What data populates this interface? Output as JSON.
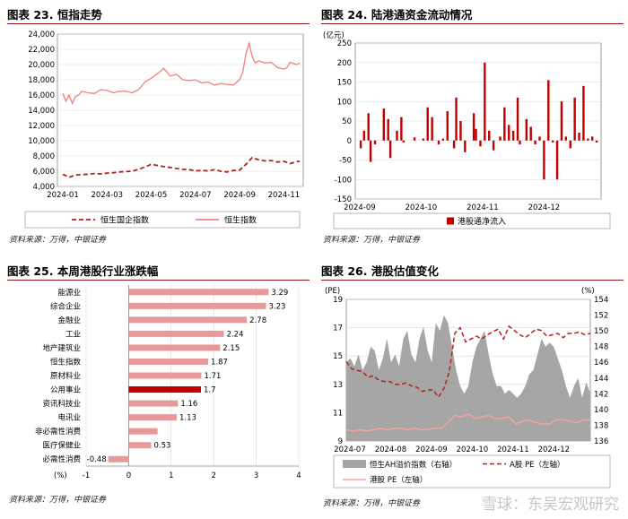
{
  "watermark": "雪球：东吴宏观研究",
  "charts": [
    {
      "panel_title": "图表 23.  恒指走势",
      "source": "资料来源：万得，中银证券",
      "chart_data": {
        "type": "line",
        "title": "",
        "x_ticks": [
          "2024-01",
          "2024-03",
          "2024-05",
          "2024-07",
          "2024-09",
          "2024-11"
        ],
        "ylim": [
          4000,
          24000
        ],
        "y_ticks": [
          "4,000",
          "6,000",
          "8,000",
          "10,000",
          "12,000",
          "14,000",
          "16,000",
          "18,000",
          "20,000",
          "22,000",
          "24,000"
        ],
        "y_tick_values": [
          4000,
          6000,
          8000,
          10000,
          12000,
          14000,
          16000,
          18000,
          20000,
          22000,
          24000
        ],
        "grid": true,
        "legend_position": "bottom",
        "series": [
          {
            "name": "恒生国企指数",
            "color": "#b22222",
            "dash": "5,3",
            "x": [
              0,
              2,
              4,
              6,
              8,
              12,
              16,
              20,
              24,
              28,
              32,
              36,
              40,
              44,
              48,
              52,
              56,
              60,
              64,
              68,
              72,
              76,
              80,
              84,
              88,
              92,
              96,
              100,
              104,
              108,
              112,
              116,
              120,
              124,
              128,
              132,
              136,
              140,
              144,
              148,
              150
            ],
            "y": [
              5600,
              5400,
              5200,
              5350,
              5500,
              5550,
              5600,
              5700,
              5650,
              5750,
              5800,
              5900,
              5950,
              6000,
              6250,
              6550,
              6900,
              6750,
              6600,
              6500,
              6350,
              6250,
              6200,
              6050,
              6100,
              6050,
              6200,
              6000,
              5900,
              6100,
              6150,
              6900,
              7800,
              7500,
              7350,
              7400,
              7200,
              7300,
              7000,
              7250,
              7300
            ]
          },
          {
            "name": "恒生指数",
            "color": "#f08080",
            "dash": "",
            "x": [
              0,
              2,
              4,
              6,
              8,
              10,
              12,
              16,
              20,
              24,
              28,
              32,
              36,
              40,
              44,
              48,
              52,
              56,
              60,
              64,
              68,
              72,
              76,
              80,
              84,
              88,
              92,
              96,
              100,
              104,
              108,
              112,
              114,
              116,
              118,
              120,
              122,
              124,
              128,
              132,
              136,
              140,
              142,
              144,
              148,
              150
            ],
            "y": [
              16200,
              15200,
              16000,
              14900,
              15800,
              16000,
              16500,
              16300,
              16200,
              16700,
              16600,
              16300,
              16500,
              16500,
              16300,
              16700,
              17700,
              18200,
              18800,
              19500,
              18500,
              18700,
              18000,
              17900,
              18000,
              17600,
              17700,
              17300,
              17500,
              17400,
              17300,
              18000,
              19000,
              21500,
              22800,
              21000,
              20200,
              20500,
              20200,
              20300,
              19600,
              19400,
              19600,
              20300,
              20000,
              20200
            ]
          }
        ]
      }
    },
    {
      "panel_title": "图表 24.  陆港通资金流动情况",
      "source": "资料来源：万得，中银证券",
      "chart_data": {
        "type": "bar",
        "title": "",
        "unit_label": "(亿元)",
        "x_ticks": [
          "2024-09",
          "2024-10",
          "2024-11",
          "2024-12"
        ],
        "ylim": [
          -150,
          250
        ],
        "y_ticks": [
          "-150",
          "-100",
          "-50",
          "0",
          "50",
          "100",
          "150",
          "200",
          "250"
        ],
        "y_tick_values": [
          -150,
          -100,
          -50,
          0,
          50,
          100,
          150,
          200,
          250
        ],
        "grid": true,
        "legend_position": "bottom",
        "series": [
          {
            "name": "港股通净流入",
            "color": "#c00000",
            "x": [
              0.5,
              2,
              4,
              5,
              7,
              11,
              13,
              14,
              17,
              19,
              20,
              25,
              29,
              31,
              33,
              36,
              38,
              40,
              43,
              44,
              46,
              48,
              52,
              53,
              55,
              57,
              59,
              61,
              64,
              66,
              68,
              70,
              72,
              73,
              76,
              78,
              80,
              82,
              84,
              86,
              88,
              90,
              92,
              94,
              96,
              98,
              100,
              102,
              104,
              106,
              108
            ],
            "values": [
              -20,
              25,
              70,
              -55,
              -10,
              82,
              55,
              -45,
              25,
              60,
              -5,
              8,
              5,
              85,
              60,
              -10,
              5,
              75,
              -20,
              110,
              50,
              -30,
              70,
              30,
              -15,
              200,
              25,
              -25,
              10,
              85,
              40,
              25,
              110,
              -10,
              55,
              35,
              -10,
              10,
              -100,
              155,
              -5,
              -100,
              100,
              10,
              -20,
              110,
              20,
              140,
              5,
              10,
              -5
            ]
          }
        ]
      }
    },
    {
      "panel_title": "图表 25.  本周港股行业涨跌幅",
      "source": "资料来源：万得，中银证券",
      "chart_data": {
        "type": "bar",
        "orientation": "horizontal",
        "title": "",
        "xlabel": "(%)",
        "xlim": [
          -1,
          4
        ],
        "x_ticks": [
          "-1",
          "0",
          "1",
          "2",
          "3",
          "4"
        ],
        "x_tick_values": [
          -1,
          0,
          1,
          2,
          3,
          4
        ],
        "categories": [
          "能源业",
          "综合企业",
          "金融业",
          "工业",
          "地产建筑业",
          "恒生指数",
          "原材料业",
          "公用事业",
          "资讯科技业",
          "电讯业",
          "非必需性消费",
          "医疗保健业",
          "必需性消费"
        ],
        "values": [
          3.29,
          3.23,
          2.78,
          2.24,
          2.15,
          1.87,
          1.71,
          1.7,
          1.16,
          1.13,
          0.68,
          0.53,
          -0.48
        ],
        "value_labels": [
          "3.29",
          "3.23",
          "2.78",
          "2.24",
          "2.15",
          "1.87",
          "1.71",
          "1.7",
          "1.16",
          "1.13",
          "",
          "0.53",
          "-0.48"
        ],
        "colors": [
          "#e8999a",
          "#e8999a",
          "#e8999a",
          "#e8999a",
          "#e8999a",
          "#e8999a",
          "#e8999a",
          "#c00000",
          "#e8999a",
          "#e8999a",
          "#e8999a",
          "#e8999a",
          "#e8999a"
        ]
      }
    },
    {
      "panel_title": "图表 26.  港股估值变化",
      "source": "资料来源：万得，中银证券",
      "chart_data": {
        "type": "area",
        "title": "",
        "left_unit": "(PE)",
        "right_unit": "(%)",
        "x_ticks": [
          "2024-07",
          "2024-08",
          "2024-09",
          "2024-10",
          "2024-11",
          "2024-12"
        ],
        "ylim_left": [
          9,
          19
        ],
        "y_ticks_left": [
          "9",
          "11",
          "13",
          "15",
          "17",
          "19"
        ],
        "y_tick_values_left": [
          9,
          11,
          13,
          15,
          17,
          19
        ],
        "ylim_right": [
          136,
          154
        ],
        "y_ticks_right": [
          "136",
          "138",
          "140",
          "142",
          "144",
          "146",
          "148",
          "150",
          "152",
          "154"
        ],
        "y_tick_values_right": [
          136,
          138,
          140,
          142,
          144,
          146,
          148,
          150,
          152,
          154
        ],
        "grid": true,
        "legend_position": "bottom",
        "series": [
          {
            "name": "恒生AH溢价指数（右轴）",
            "color": "#a6a6a6",
            "axis": "right",
            "style": "area",
            "x": [
              0,
              3,
              6,
              9,
              12,
              15,
              18,
              21,
              24,
              27,
              30,
              33,
              36,
              39,
              42,
              45,
              48,
              51,
              54,
              57,
              60,
              63,
              66,
              69,
              72,
              75,
              78,
              81,
              84,
              87,
              90,
              93,
              96,
              99,
              102,
              105,
              108,
              111,
              114,
              117,
              120,
              123,
              126,
              129,
              132,
              135,
              138,
              141,
              144,
              147,
              150,
              153,
              156,
              159,
              162,
              165,
              168,
              171,
              174,
              177,
              180
            ],
            "y": [
              146,
              146.5,
              145.5,
              147,
              145,
              146,
              148,
              147.5,
              145,
              146.5,
              149,
              146,
              147,
              145.5,
              149,
              150,
              147,
              146,
              149,
              150.5,
              147.5,
              146,
              151,
              150,
              152,
              151,
              148,
              145,
              143,
              142,
              143,
              146,
              148,
              149,
              150,
              147,
              144.5,
              143,
              143,
              142,
              142.5,
              142,
              141.5,
              142,
              143,
              144.5,
              145,
              147,
              149,
              148,
              148.5,
              148,
              146.5,
              145,
              143,
              141.5,
              143,
              144,
              141.5,
              143.5,
              142
            ]
          },
          {
            "name": "A股 PE（左轴）",
            "color": "#b22222",
            "axis": "left",
            "style": "dash",
            "x": [
              0,
              4,
              8,
              12,
              16,
              20,
              24,
              28,
              32,
              36,
              40,
              44,
              48,
              52,
              56,
              60,
              64,
              68,
              72,
              76,
              80,
              84,
              88,
              92,
              96,
              100,
              104,
              108,
              112,
              116,
              120,
              124,
              128,
              132,
              136,
              140,
              144,
              148,
              152,
              156,
              160,
              164,
              168,
              172,
              176,
              180
            ],
            "y": [
              14.6,
              14.1,
              14.0,
              13.9,
              13.5,
              13.6,
              13.3,
              13.2,
              13.2,
              13.0,
              13.0,
              13.1,
              12.9,
              12.8,
              12.5,
              12.6,
              12.6,
              12.1,
              12.7,
              13.9,
              16.6,
              17.0,
              16.0,
              16.2,
              16.4,
              16.2,
              16.5,
              16.7,
              16.9,
              16.2,
              17.1,
              16.8,
              16.5,
              16.3,
              16.6,
              16.9,
              16.8,
              16.4,
              16.5,
              16.6,
              16.3,
              16.6,
              16.6,
              16.7,
              16.5,
              16.6
            ]
          },
          {
            "name": "港股 PE（左轴）",
            "color": "#f4a3a3",
            "axis": "left",
            "style": "solid",
            "x": [
              0,
              5,
              10,
              15,
              20,
              25,
              30,
              35,
              40,
              45,
              50,
              55,
              60,
              65,
              70,
              75,
              80,
              85,
              90,
              95,
              100,
              105,
              110,
              115,
              120,
              125,
              130,
              135,
              140,
              145,
              150,
              155,
              160,
              165,
              170,
              175,
              180
            ],
            "y": [
              9.8,
              9.7,
              9.8,
              9.7,
              9.8,
              9.9,
              9.8,
              9.9,
              9.9,
              9.8,
              9.9,
              9.8,
              9.8,
              9.9,
              9.9,
              10.3,
              10.8,
              10.7,
              10.9,
              10.6,
              10.7,
              10.8,
              10.6,
              10.6,
              10.7,
              10.2,
              10.4,
              10.5,
              10.3,
              10.2,
              10.2,
              10.5,
              10.5,
              10.4,
              10.3,
              10.5,
              10.5
            ]
          }
        ]
      }
    }
  ]
}
